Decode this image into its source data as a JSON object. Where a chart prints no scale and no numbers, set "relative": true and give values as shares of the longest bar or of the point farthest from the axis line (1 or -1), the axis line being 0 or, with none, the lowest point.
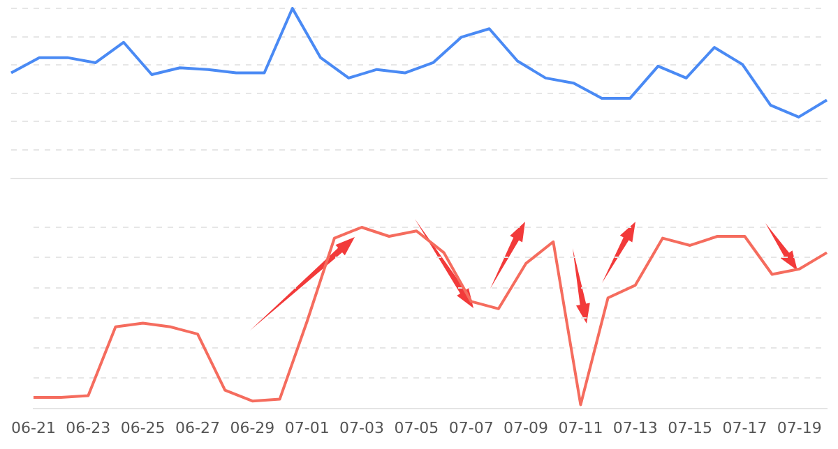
{
  "chart_data": [
    {
      "type": "line",
      "relative": true,
      "grid": "y",
      "marker": "none",
      "categories": [
        null,
        null,
        null,
        null,
        null,
        null,
        null,
        null,
        null,
        null,
        null,
        null,
        null,
        null,
        null,
        null,
        null,
        null,
        null,
        null,
        null,
        null,
        null,
        null,
        null,
        null,
        null,
        null,
        null,
        null
      ],
      "series": [
        {
          "color": "#4a8af4",
          "values": [
            0.62,
            0.71,
            0.71,
            0.68,
            0.8,
            0.61,
            0.65,
            0.64,
            0.62,
            0.62,
            1,
            0.71,
            0.59,
            0.64,
            0.62,
            0.68,
            0.83,
            0.88,
            0.69,
            0.59,
            0.56,
            0.47,
            0.47,
            0.66,
            0.59,
            0.77,
            0.67,
            0.43,
            0.36,
            0.46
          ]
        }
      ]
    },
    {
      "type": "line",
      "relative": true,
      "grid": "y",
      "tick_labels": "x",
      "marker": "none",
      "categories": [
        "06-21",
        null,
        "06-23",
        null,
        "06-25",
        null,
        "06-27",
        null,
        "06-29",
        null,
        "07-01",
        null,
        "07-03",
        null,
        "07-05",
        null,
        "07-07",
        null,
        "07-09",
        null,
        "07-11",
        null,
        "07-13",
        null,
        "07-15",
        null,
        "07-17",
        null,
        "07-19",
        null
      ],
      "series": [
        {
          "color": "#f56c5e",
          "values": [
            0.06,
            0.06,
            0.07,
            0.45,
            0.47,
            0.45,
            0.41,
            0.1,
            0.04,
            0.05,
            0.48,
            0.94,
            1,
            0.95,
            0.98,
            0.86,
            0.59,
            0.55,
            0.8,
            0.92,
            0.02,
            0.61,
            0.68,
            0.94,
            0.9,
            0.95,
            0.95,
            0.74,
            0.77,
            0.86
          ]
        }
      ]
    }
  ]
}
